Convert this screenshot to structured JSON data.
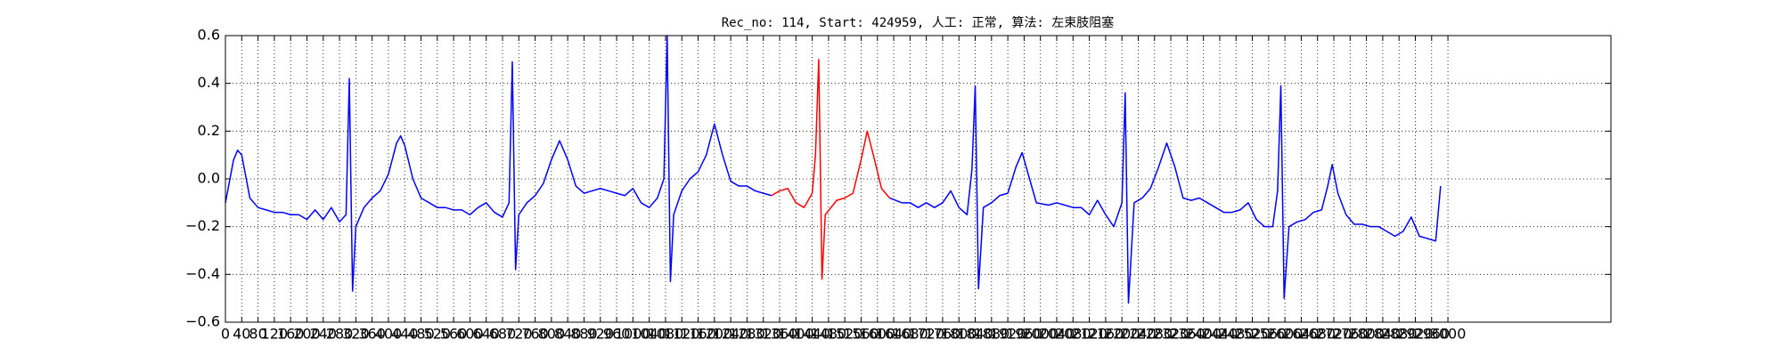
{
  "chart_data": {
    "type": "line",
    "title": "Rec_no: 114, Start: 424959, 人工: 正常, 算法: 左束肢阻塞",
    "x": [
      0,
      20,
      30,
      40,
      60,
      80,
      100,
      120,
      140,
      160,
      180,
      200,
      220,
      240,
      260,
      280,
      296,
      304,
      312,
      320,
      340,
      360,
      380,
      400,
      420,
      430,
      440,
      460,
      480,
      500,
      520,
      540,
      560,
      580,
      600,
      620,
      640,
      660,
      680,
      696,
      704,
      712,
      720,
      740,
      760,
      780,
      800,
      820,
      840,
      860,
      880,
      900,
      920,
      940,
      960,
      980,
      1000,
      1020,
      1040,
      1060,
      1076,
      1084,
      1092,
      1100,
      1120,
      1140,
      1160,
      1180,
      1200,
      1220,
      1240,
      1260,
      1280,
      1300,
      1320,
      1340,
      1360,
      1380,
      1400,
      1420,
      1440,
      1448,
      1456,
      1464,
      1472,
      1500,
      1520,
      1540,
      1560,
      1575,
      1590,
      1610,
      1630,
      1660,
      1680,
      1700,
      1720,
      1740,
      1760,
      1780,
      1800,
      1820,
      1832,
      1840,
      1848,
      1860,
      1880,
      1900,
      1920,
      1940,
      1955,
      1970,
      1990,
      2020,
      2040,
      2060,
      2080,
      2100,
      2120,
      2140,
      2160,
      2180,
      2200,
      2208,
      2216,
      2230,
      2250,
      2270,
      2290,
      2310,
      2330,
      2350,
      2370,
      2390,
      2410,
      2430,
      2450,
      2470,
      2490,
      2510,
      2530,
      2550,
      2570,
      2582,
      2590,
      2598,
      2610,
      2630,
      2650,
      2670,
      2690,
      2705,
      2716,
      2730,
      2750,
      2770,
      2790,
      2810,
      2830,
      2850,
      2870,
      2890,
      2910,
      2930,
      2950,
      2970,
      2982
    ],
    "series": [
      {
        "color": "#0000ff",
        "values": [
          -0.1,
          0.08,
          0.12,
          0.1,
          -0.08,
          -0.12,
          -0.13,
          -0.14,
          -0.14,
          -0.15,
          -0.15,
          -0.17,
          -0.13,
          -0.17,
          -0.12,
          -0.18,
          -0.15,
          0.42,
          -0.47,
          -0.2,
          -0.12,
          -0.08,
          -0.05,
          0.02,
          0.15,
          0.18,
          0.14,
          0.0,
          -0.08,
          -0.1,
          -0.12,
          -0.12,
          -0.13,
          -0.13,
          -0.15,
          -0.12,
          -0.1,
          -0.14,
          -0.16,
          -0.1,
          0.49,
          -0.38,
          -0.15,
          -0.1,
          -0.07,
          -0.02,
          0.08,
          0.16,
          0.08,
          -0.03,
          -0.06,
          -0.05,
          -0.04,
          -0.05,
          -0.06,
          -0.07,
          -0.04,
          -0.1,
          -0.12,
          -0.08,
          0.0,
          0.6,
          -0.43,
          -0.15,
          -0.05,
          0.0,
          0.03,
          0.1,
          0.23,
          0.1,
          -0.01,
          -0.03,
          -0.03,
          -0.05,
          -0.06,
          -0.07,
          null,
          null,
          null,
          null,
          null,
          null,
          null,
          null,
          null,
          null,
          null,
          null,
          null,
          null,
          null,
          null,
          -0.08,
          -0.1,
          -0.1,
          -0.12,
          -0.1,
          -0.12,
          -0.1,
          -0.05,
          -0.12,
          -0.15,
          0.04,
          0.39,
          -0.46,
          -0.12,
          -0.1,
          -0.07,
          -0.06,
          0.05,
          0.11,
          0.02,
          -0.1,
          -0.11,
          -0.1,
          -0.11,
          -0.12,
          -0.12,
          -0.15,
          -0.09,
          -0.15,
          -0.2,
          -0.1,
          0.36,
          -0.52,
          -0.1,
          -0.08,
          -0.04,
          0.05,
          0.15,
          0.05,
          -0.08,
          -0.09,
          -0.08,
          -0.1,
          -0.12,
          -0.14,
          -0.14,
          -0.13,
          -0.1,
          -0.17,
          -0.2,
          -0.2,
          -0.05,
          0.39,
          -0.5,
          -0.2,
          -0.18,
          -0.17,
          -0.14,
          -0.13,
          -0.03,
          0.06,
          -0.06,
          -0.15,
          -0.19,
          -0.19,
          -0.2,
          -0.2,
          -0.22,
          -0.24,
          -0.22,
          -0.16,
          -0.24,
          -0.25,
          -0.26,
          -0.03
        ]
      },
      {
        "color": "#ff0000",
        "values": [
          null,
          null,
          null,
          null,
          null,
          null,
          null,
          null,
          null,
          null,
          null,
          null,
          null,
          null,
          null,
          null,
          null,
          null,
          null,
          null,
          null,
          null,
          null,
          null,
          null,
          null,
          null,
          null,
          null,
          null,
          null,
          null,
          null,
          null,
          null,
          null,
          null,
          null,
          null,
          null,
          null,
          null,
          null,
          null,
          null,
          null,
          null,
          null,
          null,
          null,
          null,
          null,
          null,
          null,
          null,
          null,
          null,
          null,
          null,
          null,
          null,
          null,
          null,
          null,
          null,
          null,
          null,
          null,
          null,
          null,
          null,
          null,
          null,
          null,
          null,
          -0.07,
          -0.05,
          -0.04,
          -0.1,
          -0.12,
          -0.06,
          0.1,
          0.5,
          -0.42,
          -0.15,
          -0.09,
          -0.08,
          -0.06,
          0.08,
          0.2,
          0.1,
          -0.04,
          -0.08,
          null,
          null,
          null,
          null,
          null,
          null,
          null,
          null,
          null,
          null,
          null,
          null,
          null,
          null,
          null,
          null,
          null,
          null,
          null,
          null,
          null,
          null,
          null,
          null,
          null,
          null,
          null,
          null,
          null,
          null,
          null,
          null,
          null,
          null,
          null,
          null,
          null,
          null,
          null,
          null,
          null,
          null,
          null,
          null,
          null,
          null,
          null,
          null,
          null,
          null,
          null,
          null,
          null,
          null,
          null,
          null,
          null,
          null,
          null,
          null,
          null,
          null,
          null,
          null,
          null,
          null,
          null,
          null,
          null,
          null,
          null,
          null,
          null,
          null
        ]
      }
    ],
    "xlim": [
      0,
      3400
    ],
    "xticks": [
      0,
      40,
      80,
      120,
      160,
      200,
      240,
      280,
      320,
      360,
      400,
      440,
      480,
      520,
      560,
      600,
      640,
      680,
      720,
      760,
      800,
      840,
      880,
      920,
      960,
      1000,
      1040,
      1080,
      1120,
      1160,
      1200,
      1240,
      1280,
      1320,
      1360,
      1400,
      1440,
      1480,
      1520,
      1560,
      1600,
      1640,
      1680,
      1720,
      1760,
      1800,
      1840,
      1880,
      1920,
      1960,
      2000,
      2040,
      2080,
      2120,
      2160,
      2200,
      2240,
      2280,
      2320,
      2360,
      2400,
      2440,
      2480,
      2520,
      2560,
      2600,
      2640,
      2680,
      2720,
      2760,
      2800,
      2840,
      2880,
      2920,
      2960,
      3000
    ],
    "ylim": [
      -0.6,
      0.6
    ],
    "yticks": [
      {
        "value": -0.6,
        "label": "−0.6"
      },
      {
        "value": -0.4,
        "label": "−0.4"
      },
      {
        "value": -0.2,
        "label": "−0.2"
      },
      {
        "value": 0,
        "label": "0.0"
      },
      0.2,
      0.4,
      0.6
    ],
    "grid": true
  }
}
